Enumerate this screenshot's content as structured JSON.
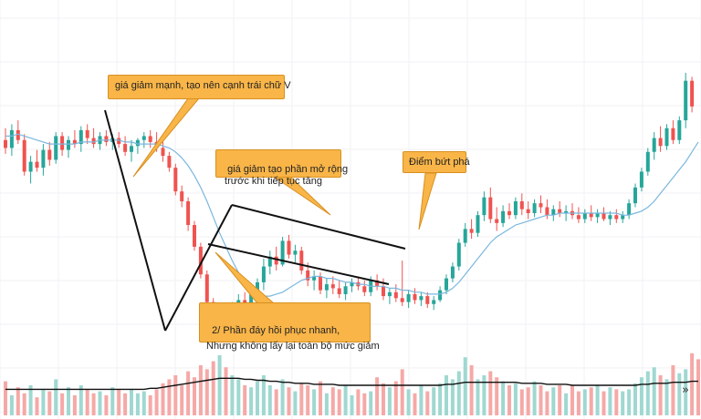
{
  "chart_data": {
    "type": "candlestick",
    "title": "",
    "grid": true,
    "colors": {
      "up": "#26a69a",
      "down": "#ef5350",
      "ma": "#7ab7df",
      "volume_ma": "#111111",
      "pattern_lines": "#111111"
    },
    "candles": [
      {
        "o": 126,
        "h": 132,
        "l": 119,
        "c": 122
      },
      {
        "o": 122,
        "h": 134,
        "l": 118,
        "c": 131
      },
      {
        "o": 131,
        "h": 136,
        "l": 124,
        "c": 126
      },
      {
        "o": 126,
        "h": 129,
        "l": 108,
        "c": 110
      },
      {
        "o": 110,
        "h": 118,
        "l": 104,
        "c": 115
      },
      {
        "o": 115,
        "h": 121,
        "l": 110,
        "c": 112
      },
      {
        "o": 112,
        "h": 124,
        "l": 108,
        "c": 121
      },
      {
        "o": 121,
        "h": 125,
        "l": 113,
        "c": 116
      },
      {
        "o": 116,
        "h": 130,
        "l": 114,
        "c": 128
      },
      {
        "o": 128,
        "h": 130,
        "l": 118,
        "c": 121
      },
      {
        "o": 121,
        "h": 128,
        "l": 117,
        "c": 126
      },
      {
        "o": 126,
        "h": 131,
        "l": 122,
        "c": 124
      },
      {
        "o": 124,
        "h": 133,
        "l": 120,
        "c": 131
      },
      {
        "o": 131,
        "h": 134,
        "l": 124,
        "c": 127
      },
      {
        "o": 127,
        "h": 132,
        "l": 122,
        "c": 124
      },
      {
        "o": 124,
        "h": 130,
        "l": 121,
        "c": 128
      },
      {
        "o": 128,
        "h": 131,
        "l": 123,
        "c": 125
      },
      {
        "o": 125,
        "h": 129,
        "l": 121,
        "c": 127
      },
      {
        "o": 127,
        "h": 130,
        "l": 122,
        "c": 124
      },
      {
        "o": 124,
        "h": 128,
        "l": 118,
        "c": 120
      },
      {
        "o": 120,
        "h": 126,
        "l": 115,
        "c": 123
      },
      {
        "o": 123,
        "h": 127,
        "l": 119,
        "c": 126
      },
      {
        "o": 126,
        "h": 130,
        "l": 122,
        "c": 128
      },
      {
        "o": 128,
        "h": 131,
        "l": 122,
        "c": 125
      },
      {
        "o": 125,
        "h": 130,
        "l": 120,
        "c": 122
      },
      {
        "o": 122,
        "h": 125,
        "l": 115,
        "c": 118
      },
      {
        "o": 118,
        "h": 120,
        "l": 110,
        "c": 112
      },
      {
        "o": 112,
        "h": 114,
        "l": 98,
        "c": 100
      },
      {
        "o": 100,
        "h": 103,
        "l": 92,
        "c": 95
      },
      {
        "o": 95,
        "h": 97,
        "l": 80,
        "c": 83
      },
      {
        "o": 83,
        "h": 85,
        "l": 70,
        "c": 72
      },
      {
        "o": 72,
        "h": 74,
        "l": 56,
        "c": 58
      },
      {
        "o": 58,
        "h": 60,
        "l": 40,
        "c": 44
      },
      {
        "o": 44,
        "h": 46,
        "l": 28,
        "c": 32
      },
      {
        "o": 32,
        "h": 42,
        "l": 24,
        "c": 38
      },
      {
        "o": 38,
        "h": 40,
        "l": 24,
        "c": 28
      },
      {
        "o": 28,
        "h": 44,
        "l": 26,
        "c": 41
      },
      {
        "o": 41,
        "h": 48,
        "l": 36,
        "c": 45
      },
      {
        "o": 45,
        "h": 49,
        "l": 38,
        "c": 41
      },
      {
        "o": 41,
        "h": 50,
        "l": 39,
        "c": 48
      },
      {
        "o": 48,
        "h": 56,
        "l": 44,
        "c": 54
      },
      {
        "o": 54,
        "h": 66,
        "l": 50,
        "c": 62
      },
      {
        "o": 62,
        "h": 70,
        "l": 58,
        "c": 67
      },
      {
        "o": 67,
        "h": 72,
        "l": 60,
        "c": 63
      },
      {
        "o": 63,
        "h": 77,
        "l": 62,
        "c": 75
      },
      {
        "o": 75,
        "h": 78,
        "l": 66,
        "c": 68
      },
      {
        "o": 68,
        "h": 73,
        "l": 64,
        "c": 70
      },
      {
        "o": 70,
        "h": 72,
        "l": 58,
        "c": 60
      },
      {
        "o": 60,
        "h": 64,
        "l": 52,
        "c": 55
      },
      {
        "o": 55,
        "h": 60,
        "l": 50,
        "c": 57
      },
      {
        "o": 57,
        "h": 59,
        "l": 48,
        "c": 50
      },
      {
        "o": 50,
        "h": 56,
        "l": 46,
        "c": 53
      },
      {
        "o": 53,
        "h": 57,
        "l": 48,
        "c": 51
      },
      {
        "o": 51,
        "h": 55,
        "l": 46,
        "c": 48
      },
      {
        "o": 48,
        "h": 54,
        "l": 45,
        "c": 52
      },
      {
        "o": 52,
        "h": 56,
        "l": 49,
        "c": 54
      },
      {
        "o": 54,
        "h": 57,
        "l": 50,
        "c": 52
      },
      {
        "o": 52,
        "h": 55,
        "l": 47,
        "c": 49
      },
      {
        "o": 49,
        "h": 57,
        "l": 47,
        "c": 55
      },
      {
        "o": 55,
        "h": 58,
        "l": 50,
        "c": 52
      },
      {
        "o": 52,
        "h": 56,
        "l": 45,
        "c": 47
      },
      {
        "o": 47,
        "h": 51,
        "l": 43,
        "c": 49
      },
      {
        "o": 49,
        "h": 53,
        "l": 44,
        "c": 46
      },
      {
        "o": 46,
        "h": 65,
        "l": 42,
        "c": 44
      },
      {
        "o": 44,
        "h": 50,
        "l": 41,
        "c": 48
      },
      {
        "o": 48,
        "h": 51,
        "l": 43,
        "c": 45
      },
      {
        "o": 45,
        "h": 49,
        "l": 42,
        "c": 47
      },
      {
        "o": 47,
        "h": 49,
        "l": 41,
        "c": 43
      },
      {
        "o": 43,
        "h": 47,
        "l": 40,
        "c": 45
      },
      {
        "o": 45,
        "h": 52,
        "l": 44,
        "c": 50
      },
      {
        "o": 50,
        "h": 58,
        "l": 48,
        "c": 56
      },
      {
        "o": 56,
        "h": 64,
        "l": 54,
        "c": 62
      },
      {
        "o": 62,
        "h": 76,
        "l": 60,
        "c": 74
      },
      {
        "o": 74,
        "h": 84,
        "l": 72,
        "c": 81
      },
      {
        "o": 81,
        "h": 86,
        "l": 76,
        "c": 79
      },
      {
        "o": 79,
        "h": 90,
        "l": 77,
        "c": 88
      },
      {
        "o": 88,
        "h": 100,
        "l": 85,
        "c": 97
      },
      {
        "o": 97,
        "h": 102,
        "l": 84,
        "c": 86
      },
      {
        "o": 86,
        "h": 92,
        "l": 80,
        "c": 84
      },
      {
        "o": 84,
        "h": 93,
        "l": 82,
        "c": 90
      },
      {
        "o": 90,
        "h": 94,
        "l": 86,
        "c": 88
      },
      {
        "o": 88,
        "h": 97,
        "l": 86,
        "c": 95
      },
      {
        "o": 95,
        "h": 99,
        "l": 88,
        "c": 91
      },
      {
        "o": 91,
        "h": 95,
        "l": 86,
        "c": 89
      },
      {
        "o": 89,
        "h": 96,
        "l": 87,
        "c": 94
      },
      {
        "o": 94,
        "h": 98,
        "l": 89,
        "c": 92
      },
      {
        "o": 92,
        "h": 96,
        "l": 86,
        "c": 88
      },
      {
        "o": 88,
        "h": 93,
        "l": 85,
        "c": 91
      },
      {
        "o": 91,
        "h": 95,
        "l": 87,
        "c": 89
      },
      {
        "o": 89,
        "h": 93,
        "l": 85,
        "c": 90
      },
      {
        "o": 90,
        "h": 94,
        "l": 86,
        "c": 88
      },
      {
        "o": 88,
        "h": 92,
        "l": 84,
        "c": 86
      },
      {
        "o": 86,
        "h": 91,
        "l": 84,
        "c": 89
      },
      {
        "o": 89,
        "h": 93,
        "l": 85,
        "c": 87
      },
      {
        "o": 87,
        "h": 91,
        "l": 84,
        "c": 89
      },
      {
        "o": 89,
        "h": 92,
        "l": 85,
        "c": 86
      },
      {
        "o": 86,
        "h": 90,
        "l": 83,
        "c": 88
      },
      {
        "o": 88,
        "h": 91,
        "l": 84,
        "c": 86
      },
      {
        "o": 86,
        "h": 90,
        "l": 84,
        "c": 88
      },
      {
        "o": 88,
        "h": 96,
        "l": 86,
        "c": 94
      },
      {
        "o": 94,
        "h": 104,
        "l": 92,
        "c": 102
      },
      {
        "o": 102,
        "h": 112,
        "l": 100,
        "c": 110
      },
      {
        "o": 110,
        "h": 122,
        "l": 108,
        "c": 120
      },
      {
        "o": 120,
        "h": 130,
        "l": 116,
        "c": 127
      },
      {
        "o": 127,
        "h": 133,
        "l": 120,
        "c": 123
      },
      {
        "o": 123,
        "h": 134,
        "l": 121,
        "c": 132
      },
      {
        "o": 132,
        "h": 136,
        "l": 124,
        "c": 126
      },
      {
        "o": 126,
        "h": 138,
        "l": 124,
        "c": 136
      },
      {
        "o": 136,
        "h": 160,
        "l": 132,
        "c": 156
      },
      {
        "o": 156,
        "h": 158,
        "l": 140,
        "c": 143
      }
    ],
    "moving_average": [
      128,
      128,
      129,
      128,
      127,
      126,
      125,
      124,
      124,
      124,
      124,
      124,
      125,
      125,
      125,
      126,
      126,
      126,
      126,
      125,
      125,
      124,
      124,
      124,
      124,
      123,
      122,
      120,
      117,
      113,
      108,
      102,
      95,
      87,
      79,
      72,
      65,
      59,
      54,
      50,
      48,
      47,
      47,
      48,
      49,
      51,
      53,
      55,
      56,
      57,
      57,
      56,
      56,
      55,
      54,
      54,
      53,
      53,
      52,
      52,
      52,
      51,
      51,
      50,
      50,
      49,
      49,
      48,
      48,
      48,
      49,
      51,
      54,
      58,
      62,
      66,
      70,
      74,
      77,
      79,
      81,
      83,
      84,
      85,
      86,
      87,
      88,
      88,
      89,
      89,
      89,
      89,
      89,
      89,
      89,
      89,
      89,
      89,
      88,
      88,
      89,
      90,
      92,
      95,
      99,
      103,
      107,
      111,
      115,
      120,
      125
    ],
    "volume": [
      34,
      20,
      28,
      22,
      30,
      18,
      26,
      24,
      36,
      22,
      28,
      20,
      30,
      26,
      22,
      24,
      20,
      28,
      26,
      22,
      26,
      22,
      24,
      20,
      26,
      32,
      36,
      40,
      30,
      44,
      38,
      50,
      46,
      54,
      60,
      48,
      40,
      36,
      30,
      28,
      34,
      40,
      30,
      26,
      36,
      28,
      24,
      32,
      30,
      26,
      34,
      22,
      28,
      26,
      30,
      20,
      26,
      22,
      24,
      38,
      32,
      28,
      34,
      46,
      26,
      22,
      30,
      24,
      28,
      32,
      40,
      36,
      44,
      58,
      50,
      36,
      40,
      44,
      38,
      34,
      30,
      32,
      26,
      28,
      34,
      30,
      24,
      28,
      30,
      22,
      30,
      24,
      26,
      28,
      30,
      24,
      28,
      26,
      24,
      26,
      32,
      38,
      44,
      48,
      40,
      36,
      50,
      42,
      46,
      62,
      56
    ],
    "volume_ma": [
      26,
      26,
      26,
      26,
      26,
      26,
      26,
      26,
      26,
      26,
      26,
      26,
      26,
      26,
      26,
      26,
      26,
      26,
      26,
      26,
      26,
      26,
      26,
      27,
      27,
      28,
      29,
      30,
      31,
      32,
      33,
      34,
      35,
      36,
      37,
      37,
      37,
      37,
      36,
      36,
      35,
      35,
      34,
      34,
      33,
      33,
      32,
      32,
      32,
      31,
      31,
      31,
      31,
      30,
      30,
      30,
      30,
      30,
      30,
      30,
      30,
      30,
      30,
      30,
      30,
      30,
      30,
      30,
      30,
      30,
      31,
      31,
      32,
      33,
      33,
      33,
      33,
      33,
      33,
      33,
      33,
      33,
      32,
      32,
      32,
      32,
      31,
      31,
      31,
      31,
      30,
      30,
      30,
      30,
      30,
      30,
      30,
      30,
      30,
      30,
      30,
      31,
      31,
      32,
      32,
      32,
      33,
      33,
      33,
      34,
      34
    ],
    "annotations": [
      "giá giảm mạnh, tạo nên cạnh trái chữ V",
      "giá giảm tạo phần mở rộng\n trước khi tiếp tục tăng",
      "Điểm bứt phá",
      "2/ Phần đáy hồi phục nhanh,\nNhưng không lấy lại toàn bộ mức giảm"
    ],
    "nav_button_glyph": "»"
  }
}
